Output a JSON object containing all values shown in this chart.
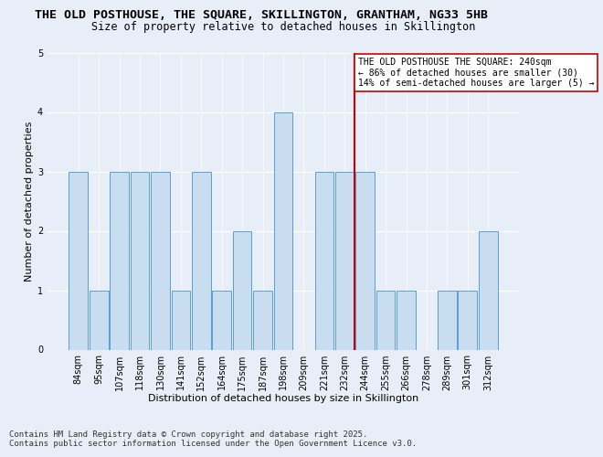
{
  "title_line1": "THE OLD POSTHOUSE, THE SQUARE, SKILLINGTON, GRANTHAM, NG33 5HB",
  "title_line2": "Size of property relative to detached houses in Skillington",
  "xlabel": "Distribution of detached houses by size in Skillington",
  "ylabel": "Number of detached properties",
  "categories": [
    "84sqm",
    "95sqm",
    "107sqm",
    "118sqm",
    "130sqm",
    "141sqm",
    "152sqm",
    "164sqm",
    "175sqm",
    "187sqm",
    "198sqm",
    "209sqm",
    "221sqm",
    "232sqm",
    "244sqm",
    "255sqm",
    "266sqm",
    "278sqm",
    "289sqm",
    "301sqm",
    "312sqm"
  ],
  "values": [
    3,
    1,
    3,
    3,
    3,
    1,
    3,
    1,
    2,
    1,
    4,
    0,
    3,
    3,
    3,
    1,
    1,
    0,
    1,
    1,
    2
  ],
  "bar_color": "#c8ddf0",
  "bar_edge_color": "#5a9fd4",
  "subject_line_x": "244sqm",
  "subject_line_color": "#cc0000",
  "annotation_text": "THE OLD POSTHOUSE THE SQUARE: 240sqm\n← 86% of detached houses are smaller (30)\n14% of semi-detached houses are larger (5) →",
  "annotation_box_color": "#ffffff",
  "annotation_box_edge_color": "#cc0000",
  "ylim": [
    0,
    5
  ],
  "yticks": [
    0,
    1,
    2,
    3,
    4,
    5
  ],
  "footer_line1": "Contains HM Land Registry data © Crown copyright and database right 2025.",
  "footer_line2": "Contains public sector information licensed under the Open Government Licence v3.0.",
  "background_color": "#e8eef8",
  "plot_background_color": "#e8eef8",
  "title_fontsize": 9.5,
  "subtitle_fontsize": 8.5,
  "axis_label_fontsize": 8,
  "tick_fontsize": 7,
  "annotation_fontsize": 7,
  "footer_fontsize": 6.5
}
